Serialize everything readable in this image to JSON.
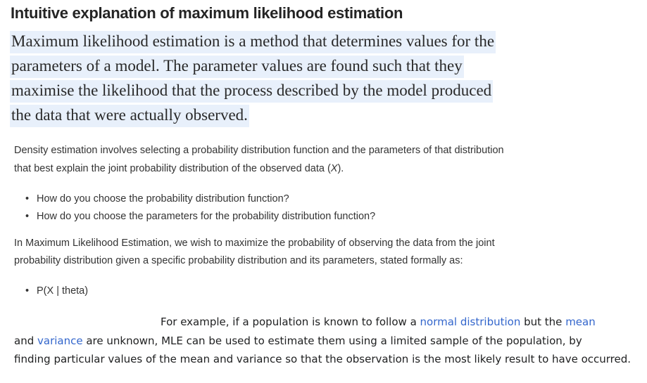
{
  "title": "Intuitive explanation of maximum likelihood estimation",
  "lead": [
    "Maximum likelihood estimation is a method that determines values for the",
    "parameters of a model. The parameter values are found such that they",
    "maximise the likelihood that the process described by the model produced",
    "the data that were actually observed."
  ],
  "density": {
    "line1": "Density estimation involves selecting a probability distribution function and the parameters of that distribution",
    "line2_pre": "that best explain the joint probability distribution of the observed data (",
    "line2_var": "X",
    "line2_post": ")."
  },
  "bullets1": [
    "How do you choose the probability distribution function?",
    "How do you choose the parameters for the probability distribution function?"
  ],
  "mle_para": [
    "In Maximum Likelihood Estimation, we wish to maximize the probability of observing the data from the joint",
    "probability distribution given a specific probability distribution and its parameters, stated formally as:"
  ],
  "bullets2": [
    "P(X | theta)"
  ],
  "example": {
    "l1_pre": "For example, if a population is known to follow a ",
    "l1_link1": "normal distribution",
    "l1_mid": " but the ",
    "l1_link2": "mean",
    "l2_pre": "and ",
    "l2_link": "variance",
    "l2_post": " are unknown, MLE can be used to estimate them using a limited sample of the population, by",
    "l3": "finding particular values of the mean and variance so that the observation is the most likely result to have occurred."
  },
  "colors": {
    "link": "#3366cc",
    "highlight": "#e8f0fb"
  }
}
